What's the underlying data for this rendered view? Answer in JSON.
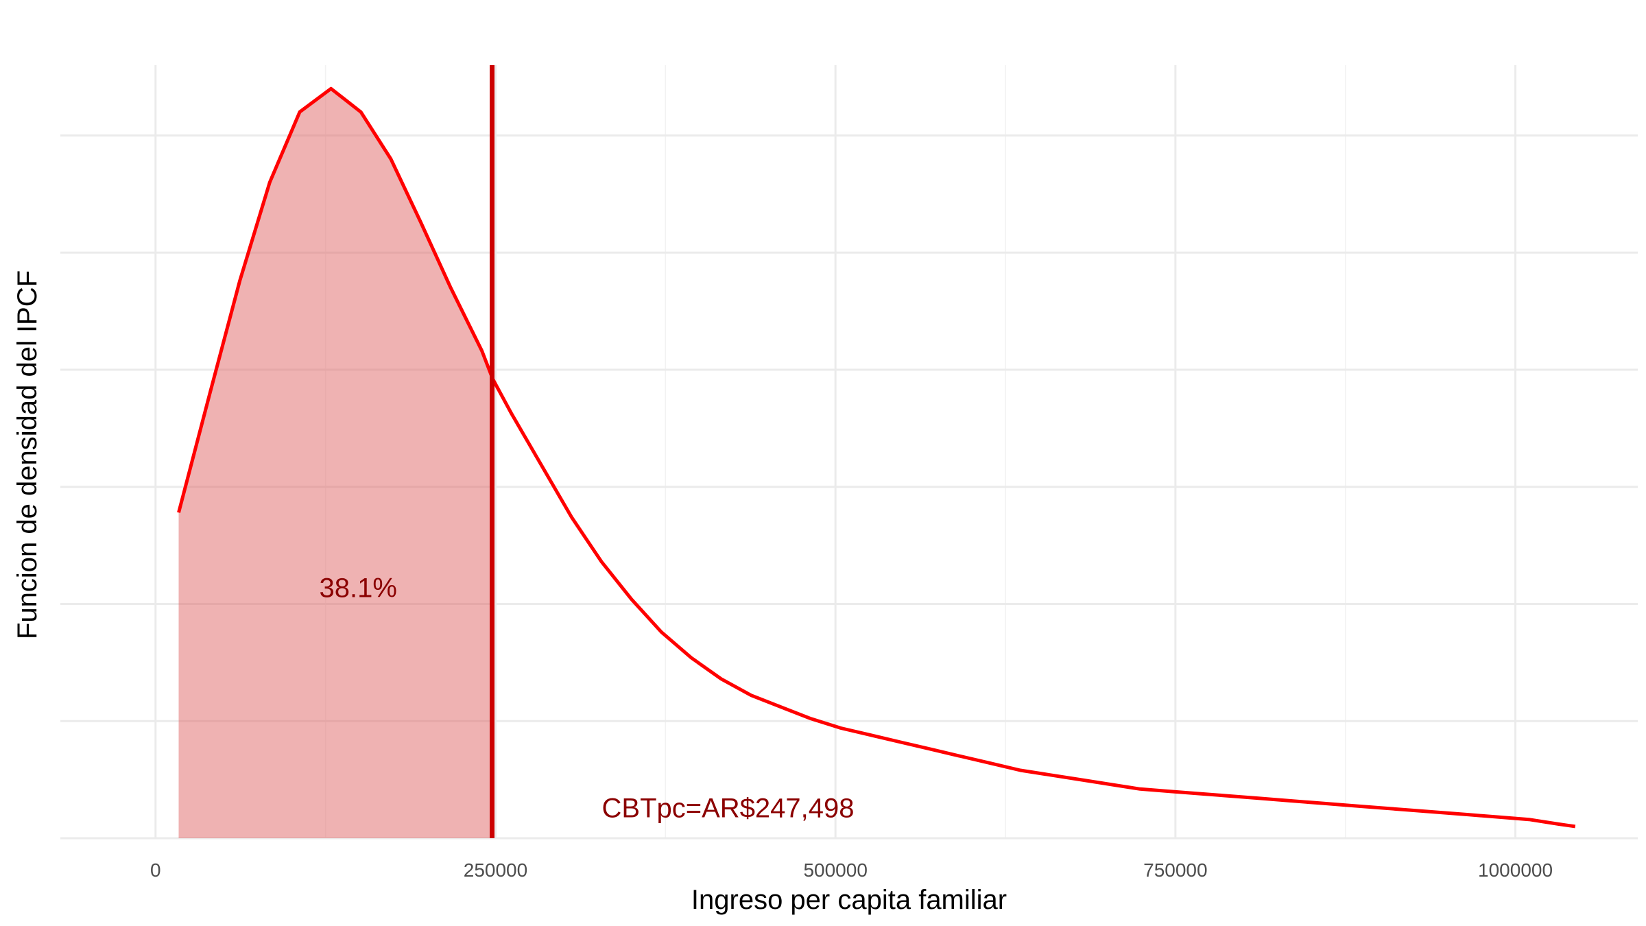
{
  "chart_data": {
    "type": "area",
    "xlabel": "Ingreso per capita familiar",
    "ylabel": "Funcion de densidad del IPCF",
    "xlim": [
      -70000,
      1090000
    ],
    "ylim": [
      -1.5e-07,
      3.3
    ],
    "x_ticks": [
      0,
      250000,
      500000,
      750000,
      1000000
    ],
    "x_tick_labels": [
      "0",
      "250000",
      "500000",
      "750000",
      "1000000"
    ],
    "x_minor_ticks": [
      125000,
      375000,
      625000,
      875000
    ],
    "y_gridlines": [
      0.5,
      1.0,
      1.5,
      2.0,
      2.5,
      3.0
    ],
    "y_minor_gridlines": [],
    "y_tick_labels_shown": false,
    "grid": true,
    "series": [
      {
        "x": [
          17000,
          40000,
          62000,
          84000,
          106000,
          129000,
          151000,
          173000,
          195000,
          217000,
          240000,
          248000,
          262000,
          284000,
          306000,
          328000,
          350000,
          372000,
          394000,
          416000,
          438000,
          460000,
          482000,
          504000,
          526000,
          548000,
          570000,
          592000,
          614000,
          636000,
          658000,
          680000,
          702000,
          724000,
          746000,
          768000,
          790000,
          812000,
          834000,
          856000,
          878000,
          900000,
          922000,
          944000,
          966000,
          988000,
          1010000,
          1032000,
          1044000
        ],
        "y": [
          1.39,
          1.9,
          2.38,
          2.8,
          3.1,
          3.2,
          3.1,
          2.9,
          2.63,
          2.35,
          2.08,
          1.96,
          1.81,
          1.59,
          1.37,
          1.18,
          1.02,
          0.88,
          0.77,
          0.68,
          0.61,
          0.56,
          0.51,
          0.47,
          0.44,
          0.41,
          0.38,
          0.35,
          0.32,
          0.29,
          0.27,
          0.25,
          0.23,
          0.21,
          0.2,
          0.19,
          0.18,
          0.17,
          0.16,
          0.15,
          0.14,
          0.13,
          0.12,
          0.11,
          0.1,
          0.09,
          0.08,
          0.06,
          0.05
        ],
        "color": "#ff0000",
        "shade_to_x": 247498,
        "shade_color": "#e06666"
      }
    ],
    "vline": {
      "x": 247498,
      "color": "#cc0000"
    },
    "annotations": [
      {
        "text": "38.1%",
        "x": 149000,
        "y": 1.06
      },
      {
        "text": "CBTpc=AR$247,498",
        "x": 421000,
        "y": 0.12
      }
    ]
  }
}
